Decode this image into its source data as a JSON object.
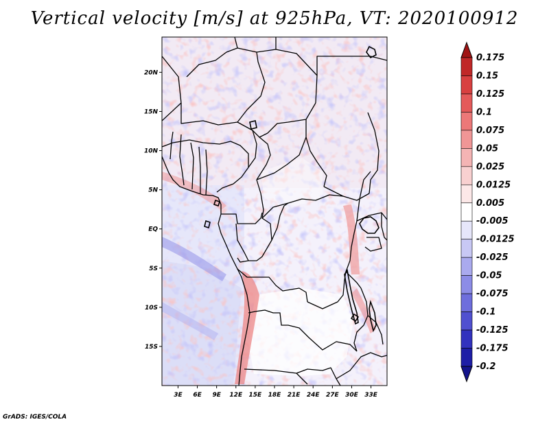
{
  "map": {
    "title": "Vertical velocity [m/s] at 925hPa, VT: 2020100912",
    "credit": "GrADS: IGES/COLA",
    "lat_labels": [
      "20N",
      "15N",
      "10N",
      "5N",
      "EQ",
      "5S",
      "10S",
      "15S"
    ],
    "lat_values": [
      20,
      15,
      10,
      5,
      0,
      -5,
      -10,
      -15
    ],
    "lon_labels": [
      "3E",
      "6E",
      "9E",
      "12E",
      "15E",
      "18E",
      "21E",
      "24E",
      "27E",
      "30E",
      "33E"
    ],
    "lon_values": [
      3,
      6,
      9,
      12,
      15,
      18,
      21,
      24,
      27,
      30,
      33
    ],
    "lat_range": [
      -20,
      24.5
    ],
    "lon_range": [
      0.5,
      35.5
    ]
  },
  "colorbar": {
    "labels": [
      "0.175",
      "0.15",
      "0.125",
      "0.1",
      "0.075",
      "0.05",
      "0.025",
      "0.0125",
      "0.005",
      "-0.005",
      "-0.0125",
      "-0.025",
      "-0.05",
      "-0.075",
      "-0.1",
      "-0.125",
      "-0.175",
      "-0.2"
    ],
    "colors": [
      "#a01414",
      "#c02828",
      "#d84040",
      "#e45a5a",
      "#ec7878",
      "#f09696",
      "#f4b4b4",
      "#f8d0d0",
      "#fce8e8",
      "#ffffff",
      "#e6e6fa",
      "#c8c8f4",
      "#aaaaee",
      "#8c8ce6",
      "#6e6edc",
      "#5050d0",
      "#3232be",
      "#1e1ea6",
      "#14148c"
    ]
  }
}
